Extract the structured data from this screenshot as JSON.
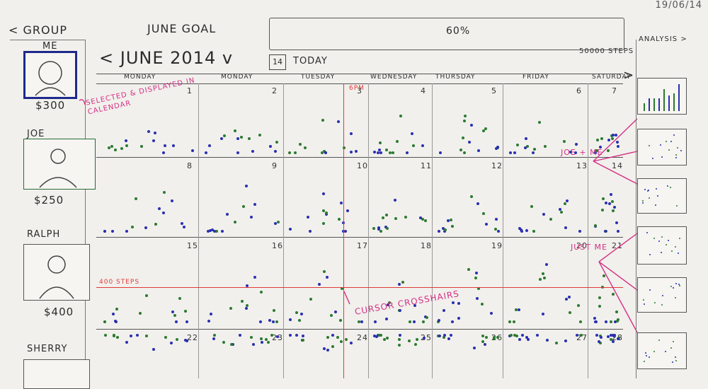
{
  "header": {
    "date": "19/06/14",
    "back_group": "< GROUP",
    "goal_label": "JUNE GOAL",
    "goal_percent": "60%",
    "goal_progress": 0.6,
    "goal_steps": "50000 STEPS",
    "analysis_label": "ANALYSIS >"
  },
  "members": [
    {
      "name": "ME",
      "amount": "$300",
      "selected": true
    },
    {
      "name": "JOE",
      "amount": "$250",
      "selected": false
    },
    {
      "name": "RALPH",
      "amount": "$400",
      "selected": false
    },
    {
      "name": "SHERRY",
      "amount": "",
      "selected": false
    }
  ],
  "calendar": {
    "title": "< JUNE 2014 v",
    "today_icon": "14",
    "today_label": "TODAY",
    "next_arrow": ">",
    "weekdays": [
      "MONDAY",
      "MONDAY",
      "TUESDAY",
      "WEDNESDAY",
      "THURSDAY",
      "FRIDAY",
      "SATURDAY"
    ],
    "weeks": [
      [
        "1",
        "2",
        "3",
        "4",
        "5",
        "6",
        "7"
      ],
      [
        "8",
        "9",
        "10",
        "11",
        "12",
        "13",
        "14"
      ],
      [
        "15",
        "16",
        "17",
        "18",
        "19",
        "20",
        "21"
      ],
      [
        "22",
        "23",
        "24",
        "25",
        "26",
        "27",
        "28"
      ]
    ]
  },
  "annotations": {
    "selected_note": "SELECTED & DISPLAYED IN CALENDAR",
    "joe_me": "JOE + ME",
    "just_me": "JUST ME",
    "cursor": "CURSOR CROSSHAIRS",
    "steps_400": "400 STEPS",
    "time_6pm": "6PM"
  },
  "colors": {
    "me": "#2a2fb0",
    "joe": "#2a7a30",
    "annotation": "#d52f86",
    "crosshair": "#e03a3a"
  }
}
